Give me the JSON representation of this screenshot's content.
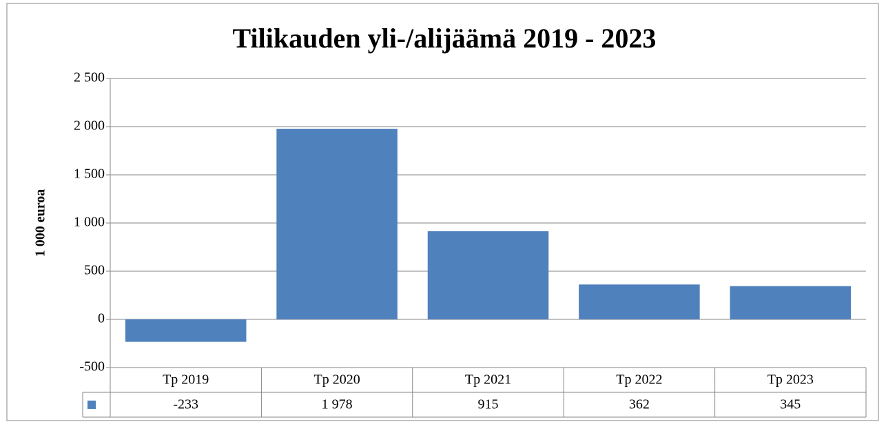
{
  "chart_data": {
    "type": "bar",
    "title": "Tilikauden yli-/alijäämä 2019 - 2023",
    "y_label": "1 000 euroa",
    "categories": [
      "Tp 2019",
      "Tp 2020",
      "Tp 2021",
      "Tp 2022",
      "Tp 2023"
    ],
    "values": [
      -233,
      1978,
      915,
      362,
      345
    ],
    "value_labels": [
      "-233",
      "1 978",
      "915",
      "362",
      "345"
    ],
    "color": "#4f81bd",
    "ylim": [
      -500,
      2500
    ],
    "yticks": [
      -500,
      0,
      500,
      {
        "value": 1000,
        "label": "1 000"
      },
      {
        "value": 1500,
        "label": "1 500"
      },
      {
        "value": 2000,
        "label": "2 000"
      },
      {
        "value": 2500,
        "label": "2 500"
      }
    ],
    "grid": true
  }
}
